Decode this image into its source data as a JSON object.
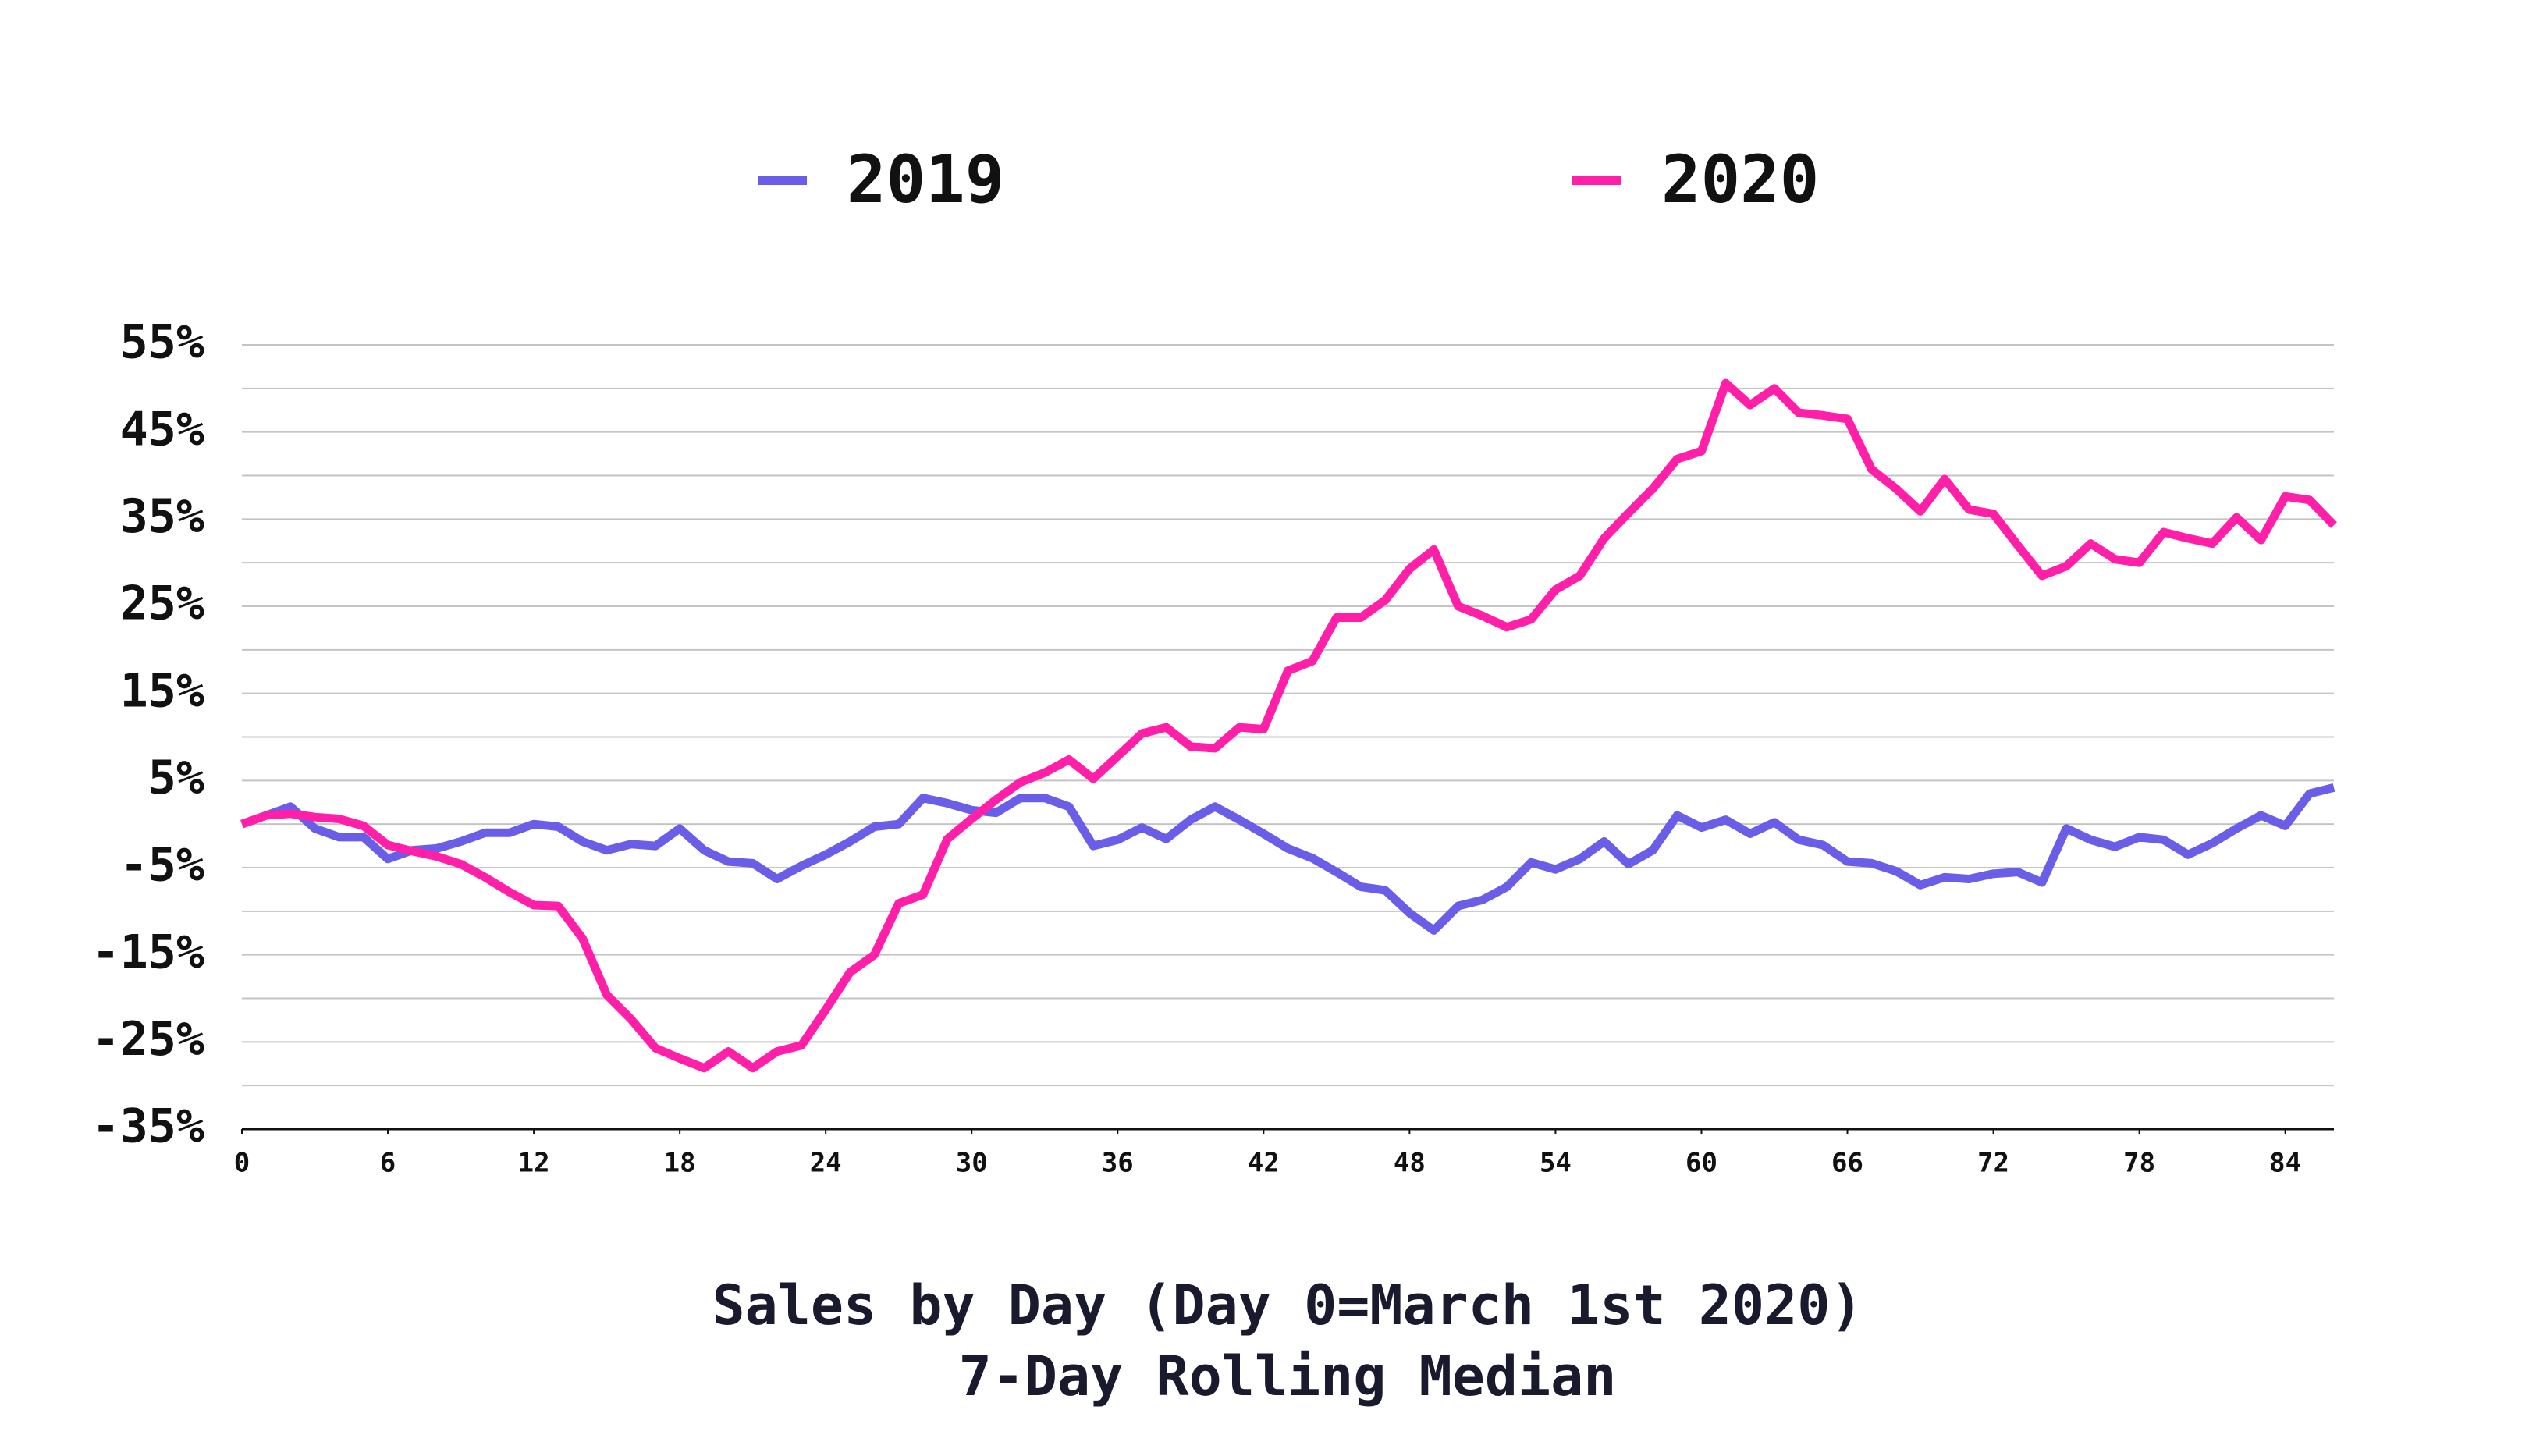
{
  "chart_data": {
    "type": "line",
    "title": "Sales by Day (Day 0=March 1st 2020)",
    "subtitle": "7-Day Rolling Median",
    "legend": "top",
    "grid": true,
    "x": [
      0,
      1,
      2,
      3,
      4,
      5,
      6,
      7,
      8,
      9,
      10,
      11,
      12,
      13,
      14,
      15,
      16,
      17,
      18,
      19,
      20,
      21,
      22,
      23,
      24,
      25,
      26,
      27,
      28,
      29,
      30,
      31,
      32,
      33,
      34,
      35,
      36,
      37,
      38,
      39,
      40,
      41,
      42,
      43,
      44,
      45,
      46,
      47,
      48,
      49,
      50,
      51,
      52,
      53,
      54,
      55,
      56,
      57,
      58,
      59,
      60,
      61,
      62,
      63,
      64,
      65,
      66,
      67,
      68,
      69,
      70,
      71,
      72,
      73,
      74,
      75,
      76,
      77,
      78,
      79,
      80,
      81,
      82,
      83,
      84,
      85,
      86
    ],
    "xlim": [
      0,
      86
    ],
    "xticks": [
      0,
      6,
      12,
      18,
      24,
      30,
      36,
      42,
      48,
      54,
      60,
      66,
      72,
      78,
      84
    ],
    "ylim": [
      -35,
      55
    ],
    "yticks": [
      {
        "value": 55,
        "label": "55%"
      },
      {
        "value": 45,
        "label": "45%"
      },
      {
        "value": 35,
        "label": "35%"
      },
      {
        "value": 25,
        "label": "25%"
      },
      {
        "value": 15,
        "label": "15%"
      },
      {
        "value": 5,
        "label": "5%"
      },
      {
        "value": -5,
        "label": "-5%"
      },
      {
        "value": -15,
        "label": "-15%"
      },
      {
        "value": -25,
        "label": "-25%"
      },
      {
        "value": -35,
        "label": "-35%"
      }
    ],
    "minor_grid": [
      50,
      40,
      30,
      20,
      10,
      0,
      -10,
      -20,
      -30
    ],
    "series": [
      {
        "name": "2019",
        "color": "#6a5ee8",
        "values": [
          0,
          1,
          2,
          -0.5,
          -1.5,
          -1.5,
          -4,
          -3,
          -2.8,
          -2,
          -1,
          -1,
          0,
          -0.3,
          -2,
          -3,
          -2.3,
          -2.5,
          -0.5,
          -3,
          -4.3,
          -4.5,
          -6.3,
          -4.8,
          -3.5,
          -2,
          -0.3,
          0,
          3,
          2.4,
          1.6,
          1.3,
          3,
          3,
          2,
          -2.5,
          -1.8,
          -0.4,
          -1.7,
          0.5,
          2,
          0.5,
          -1.1,
          -2.8,
          -3.9,
          -5.5,
          -7.2,
          -7.6,
          -10.2,
          -12.2,
          -9.4,
          -8.7,
          -7.2,
          -4.4,
          -5.2,
          -4,
          -2,
          -4.6,
          -3,
          1,
          -0.4,
          0.5,
          -1.1,
          0.2,
          -1.8,
          -2.4,
          -4.3,
          -4.5,
          -5.4,
          -7,
          -6.1,
          -6.3,
          -5.7,
          -5.5,
          -6.7,
          -0.5,
          -1.8,
          -2.6,
          -1.5,
          -1.8,
          -3.5,
          -2.2,
          -0.5,
          1,
          -0.2,
          3.5,
          4.2
        ]
      },
      {
        "name": "2020",
        "color": "#ff1fa8",
        "values": [
          0,
          1,
          1.2,
          0.8,
          0.6,
          -0.2,
          -2.4,
          -3.1,
          -3.7,
          -4.6,
          -6.1,
          -7.8,
          -9.3,
          -9.4,
          -13.1,
          -19.6,
          -22.4,
          -25.7,
          -26.9,
          -28,
          -26.1,
          -28,
          -26.1,
          -25.4,
          -21.3,
          -17,
          -15,
          -9.1,
          -8.1,
          -1.7,
          0.6,
          2.8,
          4.8,
          5.9,
          7.4,
          5.2,
          7.8,
          10.4,
          11.1,
          8.9,
          8.7,
          11.1,
          10.9,
          17.6,
          18.7,
          23.7,
          23.7,
          25.7,
          29.3,
          31.5,
          25,
          23.9,
          22.6,
          23.5,
          26.9,
          28.5,
          32.8,
          35.7,
          38.5,
          41.9,
          42.8,
          50.6,
          48.1,
          50,
          47.2,
          46.9,
          46.5,
          40.7,
          38.5,
          35.9,
          39.6,
          36.1,
          35.6,
          32,
          28.5,
          29.6,
          32.2,
          30.4,
          30,
          33.5,
          32.8,
          32.2,
          35.2,
          32.6,
          37.6,
          37.2,
          34.3
        ]
      }
    ]
  }
}
